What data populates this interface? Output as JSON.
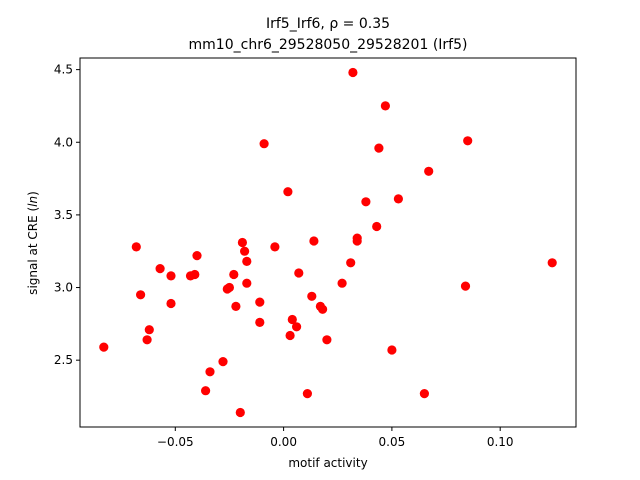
{
  "chart_data": {
    "type": "scatter",
    "title_line1": "Irf5_Irf6, ρ = 0.35",
    "title_line2": "mm10_chr6_29528050_29528201 (Irf5)",
    "xlabel": "motif activity",
    "ylabel": "signal at CRE (ln)",
    "xlim": [
      -0.094,
      0.135
    ],
    "ylim": [
      2.04,
      4.58
    ],
    "xticks": [
      -0.05,
      0.0,
      0.05,
      0.1
    ],
    "xtick_labels": [
      "−0.05",
      "0.00",
      "0.05",
      "0.10"
    ],
    "yticks": [
      2.5,
      3.0,
      3.5,
      4.0,
      4.5
    ],
    "ytick_labels": [
      "2.5",
      "3.0",
      "3.5",
      "4.0",
      "4.5"
    ],
    "grid": false,
    "marker_color": "#ff0000",
    "points": [
      [
        -0.083,
        2.59
      ],
      [
        -0.068,
        3.28
      ],
      [
        -0.066,
        2.95
      ],
      [
        -0.063,
        2.64
      ],
      [
        -0.062,
        2.71
      ],
      [
        -0.057,
        3.13
      ],
      [
        -0.052,
        3.08
      ],
      [
        -0.052,
        2.89
      ],
      [
        -0.043,
        3.08
      ],
      [
        -0.041,
        3.09
      ],
      [
        -0.04,
        3.22
      ],
      [
        -0.036,
        2.29
      ],
      [
        -0.034,
        2.42
      ],
      [
        -0.028,
        2.49
      ],
      [
        -0.026,
        2.99
      ],
      [
        -0.025,
        3.0
      ],
      [
        -0.023,
        3.09
      ],
      [
        -0.022,
        2.87
      ],
      [
        -0.02,
        2.14
      ],
      [
        -0.019,
        3.31
      ],
      [
        -0.018,
        3.25
      ],
      [
        -0.017,
        3.18
      ],
      [
        -0.017,
        3.03
      ],
      [
        -0.011,
        2.9
      ],
      [
        -0.011,
        2.76
      ],
      [
        -0.009,
        3.99
      ],
      [
        -0.004,
        3.28
      ],
      [
        0.002,
        3.66
      ],
      [
        0.003,
        2.67
      ],
      [
        0.004,
        2.78
      ],
      [
        0.006,
        2.73
      ],
      [
        0.007,
        3.1
      ],
      [
        0.011,
        2.27
      ],
      [
        0.013,
        2.94
      ],
      [
        0.014,
        3.32
      ],
      [
        0.017,
        2.87
      ],
      [
        0.018,
        2.85
      ],
      [
        0.02,
        2.64
      ],
      [
        0.027,
        3.03
      ],
      [
        0.031,
        3.17
      ],
      [
        0.032,
        4.48
      ],
      [
        0.034,
        3.34
      ],
      [
        0.034,
        3.32
      ],
      [
        0.038,
        3.59
      ],
      [
        0.043,
        3.42
      ],
      [
        0.044,
        3.96
      ],
      [
        0.047,
        4.25
      ],
      [
        0.05,
        2.57
      ],
      [
        0.053,
        3.61
      ],
      [
        0.065,
        2.27
      ],
      [
        0.067,
        3.8
      ],
      [
        0.084,
        3.01
      ],
      [
        0.085,
        4.01
      ],
      [
        0.124,
        3.17
      ]
    ]
  }
}
